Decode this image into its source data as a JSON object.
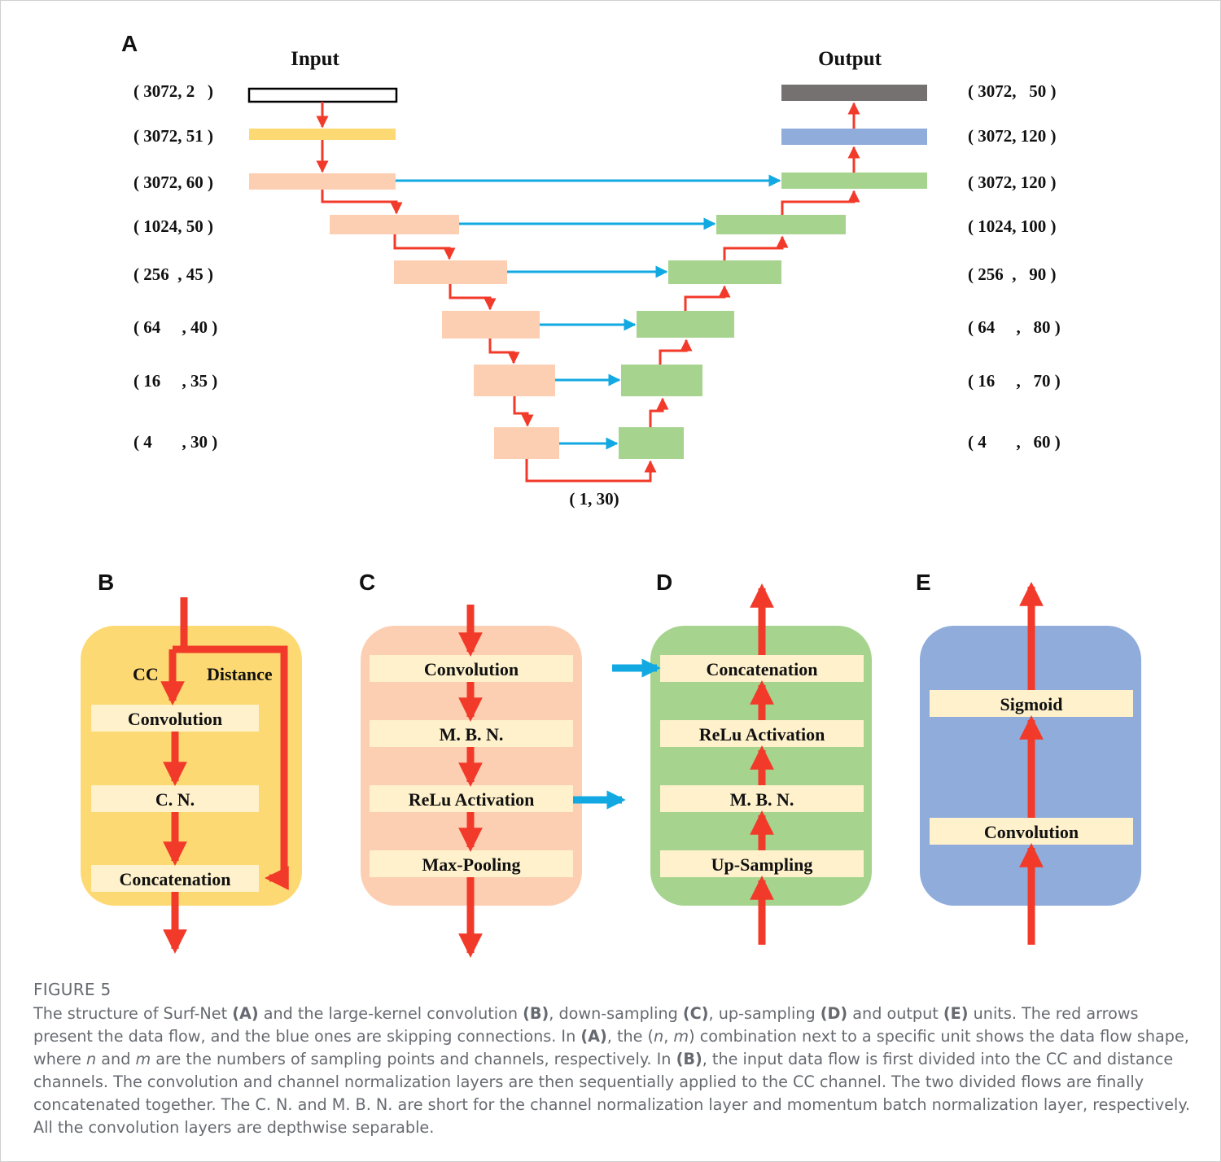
{
  "panel_labels": {
    "a": "A",
    "b": "B",
    "c": "C",
    "d": "D",
    "e": "E"
  },
  "panel_a": {
    "input_title": "Input",
    "output_title": "Output",
    "left_shapes": [
      "( 3072, 2   )",
      "( 3072, 51 )",
      "( 3072, 60 )",
      "( 1024, 50 )",
      "( 256  , 45 )",
      "( 64     , 40 )",
      "( 16     , 35 )",
      "( 4       , 30 )"
    ],
    "right_shapes": [
      "( 3072,   50 )",
      "( 3072, 120 )",
      "( 3072, 120 )",
      "( 1024, 100 )",
      "( 256  ,   90 )",
      "( 64     ,   80 )",
      "( 16     ,   70 )",
      "( 4       ,   60 )"
    ],
    "bottleneck": "( 1, 30)"
  },
  "panel_b": {
    "cc": "CC",
    "distance": "Distance",
    "layers": [
      "Convolution",
      "C. N.",
      "Concatenation"
    ]
  },
  "panel_c": {
    "layers": [
      "Convolution",
      "M. B. N.",
      "ReLu Activation",
      "Max-Pooling"
    ]
  },
  "panel_d": {
    "layers": [
      "Concatenation",
      "ReLu Activation",
      "M. B. N.",
      "Up-Sampling"
    ]
  },
  "panel_e": {
    "layers": [
      "Sigmoid",
      "Convolution"
    ]
  },
  "colors": {
    "red_arrow": "#f23a2a",
    "blue_arrow": "#12a9e2",
    "yellow": "#fdd973",
    "peach": "#fdcfb2",
    "green": "#a6d38d",
    "blue_box": "#8facdb",
    "dark_gray": "#767171",
    "layer_fill": "#fef1cc"
  },
  "caption": {
    "title": "FIGURE 5",
    "s1": "The structure of Surf-Net ",
    "l1": "(A)",
    "s2": " and the large-kernel convolution ",
    "l2": "(B)",
    "s3": ", down-sampling ",
    "l3": "(C)",
    "s4": ", up-sampling ",
    "l4": "(D)",
    "s5": " and output ",
    "l5": "(E)",
    "s6": " units. The red arrows present the data flow, and the blue ones are skipping connections. In ",
    "l6": "(A)",
    "s7": ", the (",
    "n1": "n",
    "s8": ", ",
    "m1": "m",
    "s9": ") combination next to a specific unit shows the data flow shape, where ",
    "n2": "n",
    "s10": " and ",
    "m2": "m",
    "s11": " are the numbers of sampling points and channels, respectively. In ",
    "l7": "(B)",
    "s12": ", the input data flow is first divided into the CC and distance channels. The convolution and channel normalization layers are then sequentially applied to the CC channel. The two divided flows are finally concatenated together. The C. N. and M. B. N. are short for the channel normalization layer and momentum batch normalization layer, respectively. All the convolution layers are depthwise separable."
  }
}
